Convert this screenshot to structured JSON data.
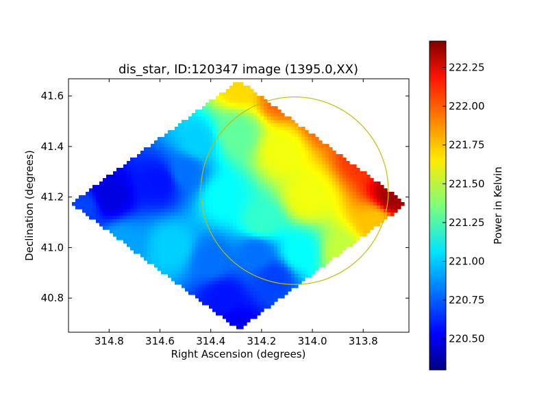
{
  "chart_data": {
    "type": "heatmap",
    "title": "dis_star, ID:120347 image (1395.0,XX)",
    "xlabel": "Right Ascension (degrees)",
    "ylabel": "Declination (degrees)",
    "xlim": [
      314.96,
      313.62
    ],
    "ylim": [
      40.665,
      41.668
    ],
    "x_ticks": [
      314.8,
      314.6,
      314.4,
      314.2,
      314.0,
      313.8
    ],
    "x_tick_labels": [
      "314.8",
      "314.6",
      "314.4",
      "314.2",
      "314.0",
      "313.8"
    ],
    "y_ticks": [
      40.8,
      41.0,
      41.2,
      41.4,
      41.6
    ],
    "y_tick_labels": [
      "40.8",
      "41.0",
      "41.2",
      "41.4",
      "41.6"
    ],
    "colorbar": {
      "label": "Power in Kelvin",
      "min": 220.3,
      "max": 222.42,
      "colormap": "jet",
      "ticks": [
        220.5,
        220.75,
        221.0,
        221.25,
        221.5,
        221.75,
        222.0,
        222.25
      ],
      "tick_labels": [
        "220.50",
        "220.75",
        "221.00",
        "221.25",
        "221.50",
        "221.75",
        "222.00",
        "222.25"
      ]
    },
    "map_corners": {
      "north": [
        314.29,
        41.662
      ],
      "south": [
        314.29,
        40.675
      ],
      "east": [
        314.95,
        41.175
      ],
      "west": [
        313.63,
        41.175
      ]
    },
    "control_points": [
      {
        "ra": 314.29,
        "dec": 41.64,
        "value": 221.7
      },
      {
        "ra": 314.12,
        "dec": 41.6,
        "value": 221.95
      },
      {
        "ra": 313.95,
        "dec": 41.5,
        "value": 221.95
      },
      {
        "ra": 313.8,
        "dec": 41.36,
        "value": 222.05
      },
      {
        "ra": 313.68,
        "dec": 41.2,
        "value": 222.35
      },
      {
        "ra": 313.75,
        "dec": 41.1,
        "value": 221.75
      },
      {
        "ra": 313.88,
        "dec": 40.98,
        "value": 221.5
      },
      {
        "ra": 314.02,
        "dec": 41.2,
        "value": 221.6
      },
      {
        "ra": 314.12,
        "dec": 41.38,
        "value": 221.6
      },
      {
        "ra": 314.2,
        "dec": 41.1,
        "value": 221.2
      },
      {
        "ra": 314.3,
        "dec": 41.45,
        "value": 221.3
      },
      {
        "ra": 314.35,
        "dec": 41.2,
        "value": 221.1
      },
      {
        "ra": 314.45,
        "dec": 41.42,
        "value": 221.0
      },
      {
        "ra": 314.5,
        "dec": 41.3,
        "value": 220.8
      },
      {
        "ra": 314.6,
        "dec": 41.26,
        "value": 220.6
      },
      {
        "ra": 314.8,
        "dec": 41.2,
        "value": 220.5
      },
      {
        "ra": 314.9,
        "dec": 41.16,
        "value": 220.7
      },
      {
        "ra": 314.75,
        "dec": 41.02,
        "value": 220.9
      },
      {
        "ra": 314.55,
        "dec": 41.0,
        "value": 221.0
      },
      {
        "ra": 314.4,
        "dec": 40.95,
        "value": 220.8
      },
      {
        "ra": 314.35,
        "dec": 40.8,
        "value": 220.6
      },
      {
        "ra": 314.3,
        "dec": 40.69,
        "value": 220.55
      },
      {
        "ra": 314.15,
        "dec": 40.88,
        "value": 220.7
      },
      {
        "ra": 314.05,
        "dec": 40.98,
        "value": 221.1
      },
      {
        "ra": 314.22,
        "dec": 40.98,
        "value": 220.8
      }
    ],
    "circle": {
      "center_ra": 314.07,
      "center_dec": 41.225,
      "radius_deg": 0.37,
      "color": "#bfbf00"
    },
    "grid": false
  }
}
